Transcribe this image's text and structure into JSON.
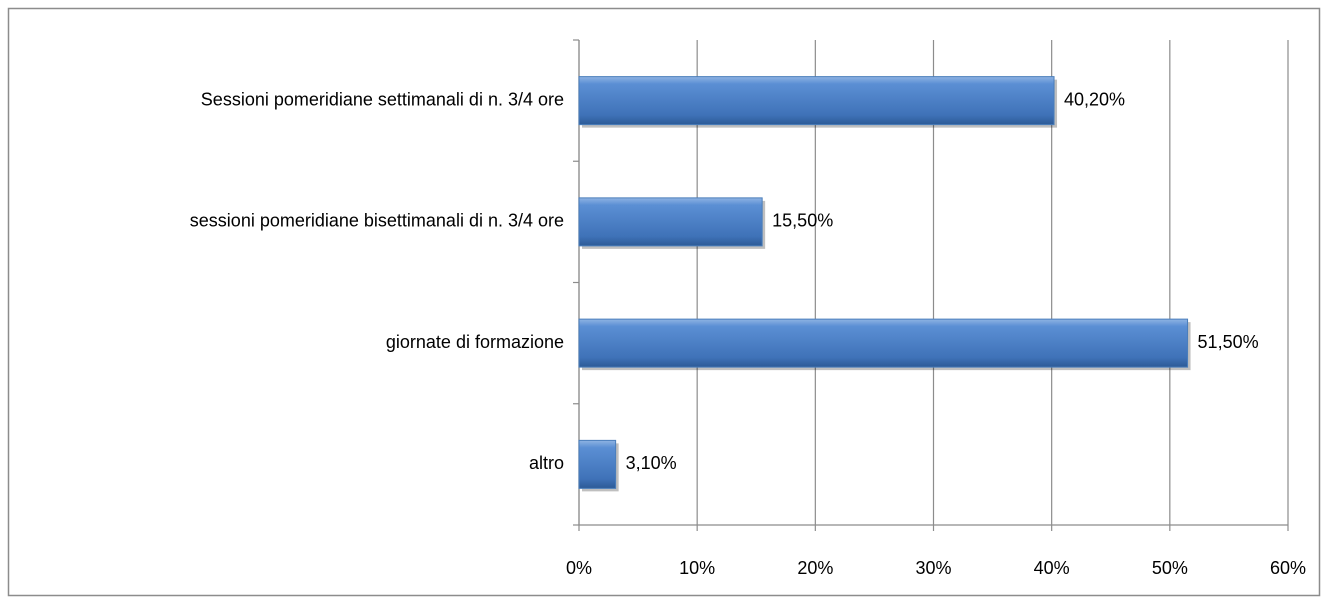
{
  "chart_data": {
    "type": "hbar",
    "categories": [
      "Sessioni pomeridiane settimanali di n. 3/4 ore",
      "sessioni pomeridiane bisettimanali di n. 3/4 ore",
      "giornate di formazione",
      "altro"
    ],
    "values": [
      40.2,
      15.5,
      51.5,
      3.1
    ],
    "value_labels": [
      "40,20%",
      "15,50%",
      "51,50%",
      "3,10%"
    ],
    "color": "#4a7ebb",
    "xlim": [
      0,
      60
    ],
    "xticks": [
      {
        "value": 0,
        "label": "0%"
      },
      {
        "value": 10,
        "label": "10%"
      },
      {
        "value": 20,
        "label": "20%"
      },
      {
        "value": 30,
        "label": "30%"
      },
      {
        "value": 40,
        "label": "40%"
      },
      {
        "value": 50,
        "label": "50%"
      },
      {
        "value": 60,
        "label": "60%"
      }
    ],
    "grid": true
  }
}
